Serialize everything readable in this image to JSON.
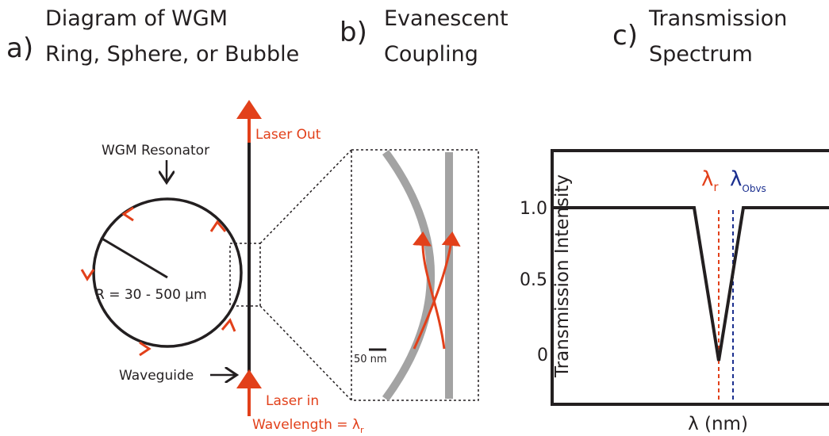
{
  "panels": {
    "a": {
      "label": "a)",
      "title": [
        "Diagram of WGM",
        "Ring, Sphere, or Bubble"
      ],
      "resonator_label": "WGM Resonator",
      "radius_label": "R = 30 - 500 µm",
      "waveguide_label": "Waveguide",
      "laser_out": "Laser Out",
      "laser_in": "Laser in",
      "wavelength": {
        "text": "Wavelength = λ",
        "sub": "r"
      }
    },
    "b": {
      "label": "b)",
      "title": [
        "Evanescent",
        "Coupling"
      ],
      "scale_bar": "50 nm"
    },
    "c": {
      "label": "c)",
      "title": [
        "Transmission",
        "Spectrum"
      ],
      "y_axis_label": "Transmission Intensity",
      "yticks": [
        "1.0",
        "0.5",
        "0"
      ],
      "x_axis_label": "λ (nm)",
      "lambda_r": {
        "text": "λ",
        "sub": "r"
      },
      "lambda_obvs": {
        "text": "λ",
        "sub": "Obvs"
      }
    }
  }
}
